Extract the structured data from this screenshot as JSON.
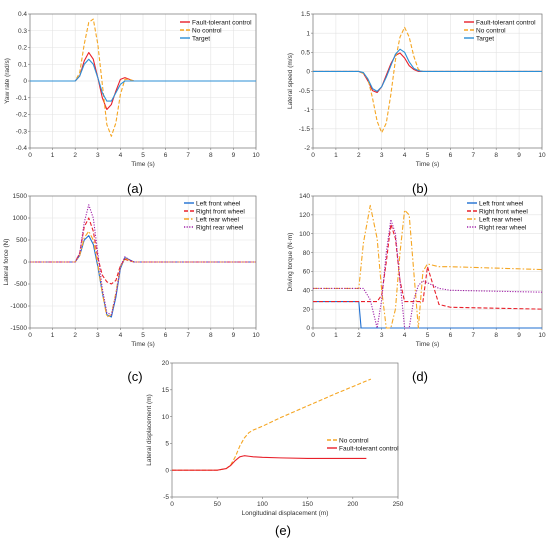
{
  "chart_data": [
    {
      "id": "a",
      "caption": "(a)",
      "type": "line",
      "xlabel": "Time (s)",
      "ylabel": "Yaw rate (rad/s)",
      "xlim": [
        0,
        10
      ],
      "ylim": [
        -0.4,
        0.4
      ],
      "xticks": [
        0,
        1,
        2,
        3,
        4,
        5,
        6,
        7,
        8,
        9,
        10
      ],
      "yticks": [
        -0.4,
        -0.3,
        -0.2,
        -0.1,
        0,
        0.1,
        0.2,
        0.3,
        0.4
      ],
      "grid": true,
      "legend": "top-right",
      "series": [
        {
          "name": "Fault-tolerant control",
          "color": "#e8202a",
          "dash": "solid",
          "x": [
            0,
            2,
            2.2,
            2.4,
            2.6,
            2.8,
            3.0,
            3.2,
            3.4,
            3.6,
            3.8,
            4.0,
            4.2,
            4.4,
            4.6,
            5,
            10
          ],
          "y": [
            0,
            0,
            0.03,
            0.12,
            0.17,
            0.13,
            0.02,
            -0.1,
            -0.17,
            -0.14,
            -0.06,
            0.01,
            0.02,
            0.01,
            0,
            0,
            0
          ]
        },
        {
          "name": "No control",
          "color": "#f5a623",
          "dash": "dash",
          "x": [
            0,
            2,
            2.2,
            2.4,
            2.6,
            2.8,
            3.0,
            3.2,
            3.4,
            3.6,
            3.8,
            4.0,
            4.2,
            4.4,
            4.6,
            5,
            10
          ],
          "y": [
            0,
            0,
            0.05,
            0.22,
            0.35,
            0.37,
            0.22,
            -0.02,
            -0.26,
            -0.33,
            -0.25,
            -0.08,
            0.01,
            0.01,
            0,
            0,
            0
          ]
        },
        {
          "name": "Target",
          "color": "#2b8fd6",
          "dash": "solid",
          "x": [
            0,
            2,
            2.2,
            2.4,
            2.6,
            2.8,
            3.0,
            3.2,
            3.4,
            3.6,
            3.8,
            4.0,
            4.2,
            4.4,
            4.6,
            5,
            10
          ],
          "y": [
            0,
            0,
            0.03,
            0.1,
            0.13,
            0.1,
            0.02,
            -0.07,
            -0.12,
            -0.12,
            -0.07,
            -0.02,
            0.0,
            0.0,
            0,
            0,
            0
          ]
        }
      ]
    },
    {
      "id": "b",
      "caption": "(b)",
      "type": "line",
      "xlabel": "Time (s)",
      "ylabel": "Lateral speed (m/s)",
      "xlim": [
        0,
        10
      ],
      "ylim": [
        -2,
        1.5
      ],
      "xticks": [
        0,
        1,
        2,
        3,
        4,
        5,
        6,
        7,
        8,
        9,
        10
      ],
      "yticks": [
        -2,
        -1.5,
        -1,
        -0.5,
        0,
        0.5,
        1,
        1.5
      ],
      "grid": true,
      "legend": "top-right",
      "series": [
        {
          "name": "Fault-tolerant control",
          "color": "#e8202a",
          "dash": "solid",
          "x": [
            0,
            2,
            2.2,
            2.4,
            2.6,
            2.8,
            3.0,
            3.2,
            3.4,
            3.6,
            3.8,
            4.0,
            4.2,
            4.4,
            4.6,
            4.8,
            5,
            10
          ],
          "y": [
            0,
            0,
            -0.05,
            -0.25,
            -0.5,
            -0.55,
            -0.4,
            -0.1,
            0.2,
            0.42,
            0.48,
            0.35,
            0.15,
            0.05,
            0.0,
            0.0,
            0,
            0
          ]
        },
        {
          "name": "No control",
          "color": "#f5a623",
          "dash": "dash",
          "x": [
            0,
            2,
            2.2,
            2.4,
            2.6,
            2.8,
            3.0,
            3.2,
            3.4,
            3.6,
            3.8,
            4.0,
            4.2,
            4.4,
            4.6,
            4.8,
            5,
            10
          ],
          "y": [
            0,
            0,
            -0.05,
            -0.2,
            -0.7,
            -1.3,
            -1.6,
            -1.35,
            -0.6,
            0.3,
            0.9,
            1.15,
            0.9,
            0.4,
            0.05,
            0.0,
            0,
            0
          ]
        },
        {
          "name": "Target",
          "color": "#2b8fd6",
          "dash": "solid",
          "x": [
            0,
            2,
            2.2,
            2.4,
            2.6,
            2.8,
            3.0,
            3.2,
            3.4,
            3.6,
            3.8,
            4.0,
            4.2,
            4.4,
            4.6,
            4.8,
            5,
            10
          ],
          "y": [
            0,
            0,
            -0.03,
            -0.2,
            -0.45,
            -0.52,
            -0.4,
            -0.15,
            0.15,
            0.45,
            0.58,
            0.5,
            0.25,
            0.08,
            0.02,
            0.0,
            0,
            0
          ]
        }
      ]
    },
    {
      "id": "c",
      "caption": "(c)",
      "type": "line",
      "xlabel": "Time (s)",
      "ylabel": "Lateral force (N)",
      "xlim": [
        0,
        10
      ],
      "ylim": [
        -1500,
        1500
      ],
      "xticks": [
        0,
        1,
        2,
        3,
        4,
        5,
        6,
        7,
        8,
        9,
        10
      ],
      "yticks": [
        -1500,
        -1000,
        -500,
        0,
        500,
        1000,
        1500
      ],
      "grid": true,
      "legend": "top-right",
      "series": [
        {
          "name": "Left front wheel",
          "color": "#1f6fd1",
          "dash": "solid",
          "x": [
            0,
            2,
            2.2,
            2.4,
            2.6,
            2.8,
            3.0,
            3.2,
            3.4,
            3.6,
            3.8,
            4.0,
            4.2,
            4.4,
            4.6,
            4.8,
            5,
            10
          ],
          "y": [
            0,
            0,
            150,
            500,
            600,
            400,
            -100,
            -700,
            -1200,
            -1250,
            -800,
            -150,
            100,
            50,
            0,
            0,
            0,
            0
          ]
        },
        {
          "name": "Right front wheel",
          "color": "#e8202a",
          "dash": "dash",
          "x": [
            0,
            2,
            2.2,
            2.4,
            2.6,
            2.8,
            3.0,
            3.2,
            3.4,
            3.6,
            3.8,
            4.0,
            4.2,
            4.4,
            4.6,
            4.8,
            5,
            10
          ],
          "y": [
            0,
            0,
            200,
            800,
            1000,
            700,
            100,
            -300,
            -450,
            -500,
            -420,
            -80,
            60,
            30,
            0,
            0,
            0,
            0
          ]
        },
        {
          "name": "Left rear wheel",
          "color": "#f5a623",
          "dash": "dashdot",
          "x": [
            0,
            2,
            2.2,
            2.4,
            2.6,
            2.8,
            3.0,
            3.2,
            3.4,
            3.6,
            3.8,
            4.0,
            4.2,
            4.4,
            4.6,
            4.8,
            5,
            10
          ],
          "y": [
            0,
            0,
            150,
            550,
            700,
            500,
            -50,
            -700,
            -1250,
            -1200,
            -700,
            -100,
            80,
            40,
            0,
            0,
            0,
            0
          ]
        },
        {
          "name": "Right rear wheel",
          "color": "#a020a8",
          "dash": "dot",
          "x": [
            0,
            2,
            2.2,
            2.4,
            2.6,
            2.8,
            3.0,
            3.2,
            3.4,
            3.6,
            3.8,
            4.0,
            4.2,
            4.4,
            4.6,
            4.8,
            5,
            10
          ],
          "y": [
            0,
            0,
            200,
            900,
            1300,
            1000,
            200,
            -600,
            -1150,
            -1200,
            -750,
            -100,
            120,
            50,
            0,
            0,
            0,
            0
          ]
        }
      ]
    },
    {
      "id": "d",
      "caption": "(d)",
      "type": "line",
      "xlabel": "Time (s)",
      "ylabel": "Driving torque (N·m)",
      "xlim": [
        0,
        10
      ],
      "ylim": [
        0,
        140
      ],
      "xticks": [
        0,
        1,
        2,
        3,
        4,
        5,
        6,
        7,
        8,
        9,
        10
      ],
      "yticks": [
        0,
        20,
        40,
        60,
        80,
        100,
        120,
        140
      ],
      "grid": true,
      "legend": "top-right",
      "series": [
        {
          "name": "Left front wheel",
          "color": "#1f6fd1",
          "dash": "solid",
          "x": [
            0,
            2,
            2.1,
            10
          ],
          "y": [
            28,
            28,
            0,
            0
          ]
        },
        {
          "name": "Right front wheel",
          "color": "#e8202a",
          "dash": "dash",
          "x": [
            0,
            2,
            2.1,
            2.6,
            2.8,
            3.0,
            3.2,
            3.4,
            3.6,
            3.8,
            4.0,
            4.2,
            4.4,
            4.6,
            4.8,
            5.0,
            5.5,
            6,
            10
          ],
          "y": [
            28,
            28,
            28,
            28,
            28,
            35,
            70,
            110,
            95,
            50,
            28,
            28,
            28,
            28,
            28,
            65,
            25,
            22,
            20
          ]
        },
        {
          "name": "Left rear wheel",
          "color": "#f5a623",
          "dash": "dashdot",
          "x": [
            0,
            2,
            2.2,
            2.5,
            2.8,
            3.0,
            3.2,
            3.4,
            3.6,
            3.8,
            4.0,
            4.2,
            4.4,
            4.6,
            4.8,
            5.0,
            5.5,
            6,
            10
          ],
          "y": [
            42,
            42,
            90,
            130,
            95,
            40,
            0,
            0,
            20,
            80,
            125,
            120,
            60,
            0,
            60,
            68,
            65,
            65,
            62
          ]
        },
        {
          "name": "Right rear wheel",
          "color": "#a020a8",
          "dash": "dot",
          "x": [
            0,
            2,
            2.2,
            2.5,
            2.8,
            3.0,
            3.2,
            3.4,
            3.6,
            3.8,
            4.0,
            4.2,
            4.4,
            4.6,
            4.8,
            5.0,
            5.5,
            6,
            10
          ],
          "y": [
            42,
            42,
            42,
            30,
            0,
            30,
            80,
            115,
            100,
            50,
            0,
            0,
            30,
            45,
            50,
            48,
            42,
            40,
            38
          ]
        }
      ]
    },
    {
      "id": "e",
      "caption": "(e)",
      "type": "line",
      "xlabel": "Longitudinal displacement (m)",
      "ylabel": "Lateral displacement (m)",
      "xlim": [
        0,
        250
      ],
      "ylim": [
        -5,
        20
      ],
      "xticks": [
        0,
        50,
        100,
        150,
        200,
        250
      ],
      "yticks": [
        -5,
        0,
        5,
        10,
        15,
        20
      ],
      "grid": false,
      "legend": "center-right",
      "series": [
        {
          "name": "No control",
          "color": "#f5a623",
          "dash": "dash",
          "x": [
            0,
            50,
            60,
            65,
            70,
            75,
            80,
            85,
            90,
            100,
            120,
            150,
            180,
            200,
            220
          ],
          "y": [
            0,
            0,
            0.3,
            1.0,
            2.5,
            4.5,
            6.0,
            7.0,
            7.5,
            8.2,
            9.8,
            12.0,
            14.2,
            15.6,
            17.0
          ]
        },
        {
          "name": "Fault-tolerant control",
          "color": "#e8202a",
          "dash": "solid",
          "x": [
            0,
            50,
            60,
            65,
            70,
            75,
            80,
            85,
            90,
            100,
            120,
            150,
            180,
            215
          ],
          "y": [
            0,
            0,
            0.3,
            0.9,
            1.8,
            2.5,
            2.7,
            2.6,
            2.5,
            2.4,
            2.3,
            2.2,
            2.2,
            2.2
          ]
        }
      ]
    }
  ]
}
